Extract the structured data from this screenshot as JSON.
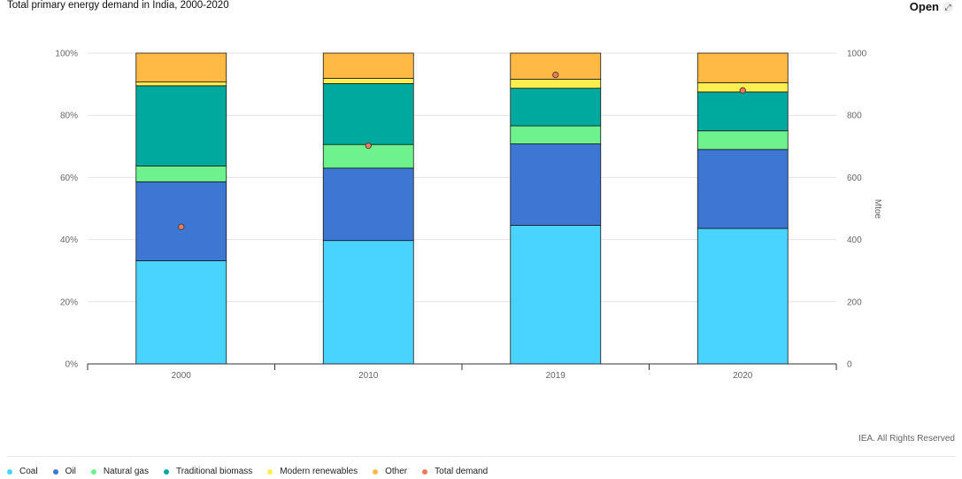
{
  "header": {
    "title": "Total primary energy demand in India, 2000-2020",
    "open_label": "Open",
    "open_icon": "expand-icon"
  },
  "footer": {
    "copyright": "IEA. All Rights Reserved"
  },
  "chart_data": {
    "type": "bar",
    "stacked": true,
    "categories": [
      "2000",
      "2010",
      "2019",
      "2020"
    ],
    "y_left": {
      "min": 0,
      "max": 100,
      "ticks": [
        "0%",
        "20%",
        "40%",
        "60%",
        "80%",
        "100%"
      ]
    },
    "y_right": {
      "label": "Mtoe",
      "min": 0,
      "max": 1000,
      "ticks": [
        "0",
        "200",
        "400",
        "600",
        "800",
        "1000"
      ]
    },
    "series": [
      {
        "name": "Coal",
        "color": "#49d3ff",
        "values": [
          33.2,
          39.7,
          44.6,
          43.6
        ]
      },
      {
        "name": "Oil",
        "color": "#3d77d3",
        "values": [
          25.4,
          23.3,
          26.2,
          25.4
        ]
      },
      {
        "name": "Natural gas",
        "color": "#6ef28e",
        "values": [
          5.1,
          7.6,
          5.8,
          6.0
        ]
      },
      {
        "name": "Traditional biomass",
        "color": "#00a99d",
        "values": [
          25.8,
          19.6,
          12.1,
          12.5
        ]
      },
      {
        "name": "Modern renewables",
        "color": "#ffee50",
        "values": [
          1.2,
          1.7,
          2.9,
          3.0
        ]
      },
      {
        "name": "Other",
        "color": "#ffb944",
        "values": [
          9.3,
          8.1,
          8.4,
          9.5
        ]
      }
    ],
    "line_series": {
      "name": "Total demand",
      "color": "#ef7b58",
      "axis": "right",
      "values": [
        441,
        702,
        930,
        880
      ]
    },
    "grid": true,
    "legend_position": "bottom"
  }
}
